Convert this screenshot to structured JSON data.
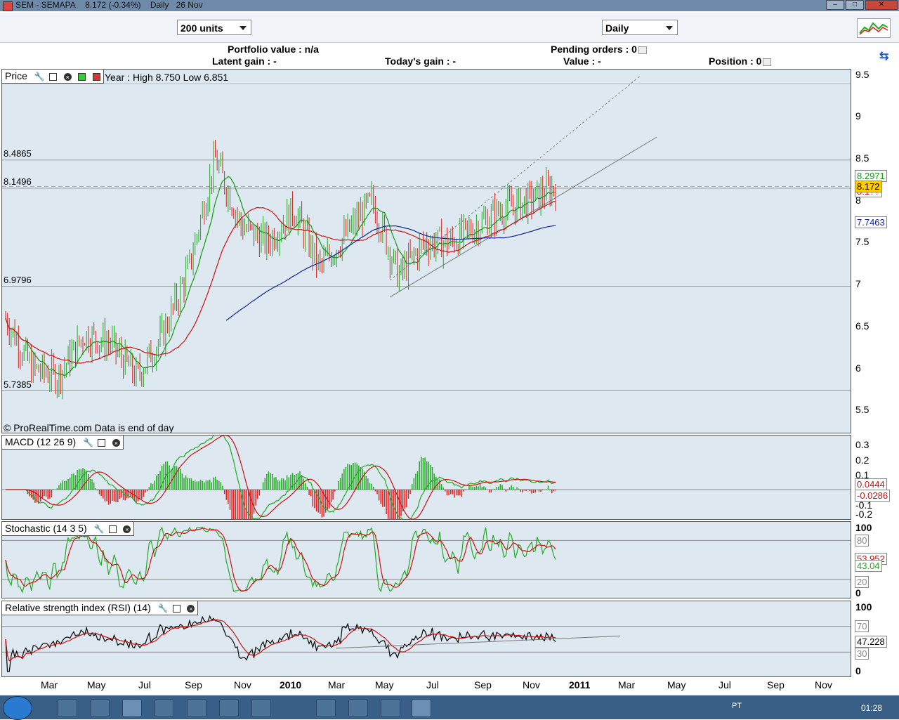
{
  "window": {
    "title": "SEM - SEMAPA",
    "quote": "8.172 (-0.34%)",
    "period_label": "Daily",
    "date": "26 Nov"
  },
  "toolbar": {
    "units_value": "200 units",
    "period_value": "Daily"
  },
  "portfolio": {
    "portfolio_value": "Portfolio value : n/a",
    "pending_orders": "Pending orders : 0",
    "latent_gain": "Latent gain : -",
    "todays_gain": "Today's gain : -",
    "value": "Value : -",
    "position": "Position : 0"
  },
  "price_panel": {
    "title": "Price",
    "year_info": "Year : High 8.750 Low 6.851",
    "copyright": "© ProRealTime.com Data is end of day",
    "levels": [
      "8.4865",
      "8.1496",
      "6.9796",
      "5.7385"
    ],
    "y_ticks": [
      "9.5",
      "9",
      "8.5",
      "8",
      "7.5",
      "7",
      "6.5",
      "6",
      "5.5"
    ],
    "value_labels": [
      "8.2971",
      "8.172",
      "8.1??",
      "7.7463"
    ]
  },
  "macd_panel": {
    "title": "MACD (12 26 9)",
    "y_ticks": [
      "0.3",
      "0.2",
      "0.1",
      "-0.1",
      "-0.2"
    ],
    "value_labels": [
      "0.0444",
      "-0.0286"
    ]
  },
  "stoch_panel": {
    "title": "Stochastic (14 3 5)",
    "y_ticks": [
      "100",
      "0"
    ],
    "level_labels": [
      "80",
      "20"
    ],
    "value_labels": [
      "53.952",
      "43.04"
    ]
  },
  "rsi_panel": {
    "title": "Relative strength index (RSI) (14)",
    "y_ticks": [
      "100",
      "0"
    ],
    "level_labels": [
      "70",
      "30"
    ],
    "value_labels": [
      "47.228"
    ]
  },
  "x_axis": [
    "Mar",
    "May",
    "Jul",
    "Sep",
    "Nov",
    "2010",
    "Mar",
    "May",
    "Jul",
    "Sep",
    "Nov",
    "2011",
    "Mar",
    "May",
    "Jul",
    "Sep",
    "Nov"
  ],
  "taskbar": {
    "lang": "PT",
    "clock": "01:28"
  },
  "colors": {
    "panel_bg": "#dde8f0",
    "price_up": "#22aa22",
    "price_down": "#dd2222",
    "ma_short": "#139913",
    "ma_mid": "#cc1111",
    "ma_long": "#112299",
    "highlight": "#ffcc00"
  },
  "chart_data": {
    "type": "line",
    "title": "SEM - SEMAPA",
    "x": [
      "2009-02",
      "2009-03",
      "2009-04",
      "2009-05",
      "2009-06",
      "2009-07",
      "2009-08",
      "2009-09",
      "2009-10",
      "2009-11",
      "2009-12",
      "2010-01",
      "2010-02",
      "2010-03",
      "2010-04",
      "2010-05",
      "2010-06",
      "2010-07",
      "2010-08",
      "2010-09",
      "2010-10",
      "2010-11"
    ],
    "series": [
      {
        "values": [
          6.6,
          6.0,
          5.9,
          6.4,
          6.3,
          5.9,
          6.4,
          7.2,
          8.5,
          7.7,
          7.5,
          7.9,
          7.2,
          7.6,
          8.0,
          7.1,
          7.5,
          7.5,
          7.7,
          7.9,
          8.0,
          8.172
        ]
      }
    ],
    "ylim": [
      5.5,
      9.5
    ]
  }
}
